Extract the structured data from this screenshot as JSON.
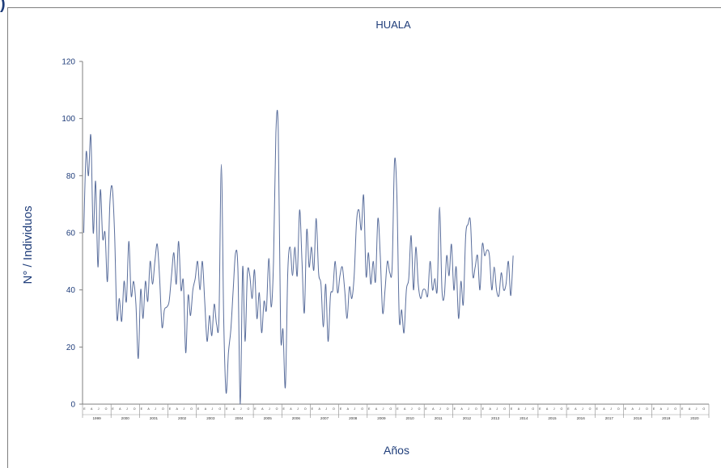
{
  "panel_label": ")",
  "chart_data": {
    "type": "line",
    "title": "HUALA",
    "xlabel": "Años",
    "ylabel": "N° / Individuos",
    "ylim": [
      0,
      120
    ],
    "yticks": [
      0,
      20,
      40,
      60,
      80,
      100,
      120
    ],
    "grid": false,
    "line_color": "#5a6e9c",
    "text_color": "#1f3d7a",
    "years": [
      "1999",
      "2000",
      "2001",
      "2002",
      "2003",
      "2004",
      "2005",
      "2006",
      "2007",
      "2008",
      "2009",
      "2010",
      "2011",
      "2012",
      "2013",
      "2014",
      "2015",
      "2016",
      "2017",
      "2018",
      "2019",
      "2020"
    ],
    "month_ticks": [
      "E",
      "A",
      "J",
      "O"
    ],
    "series": [
      {
        "name": "",
        "x_start": "1999-01",
        "step": "month",
        "values": [
          60,
          88,
          80,
          94,
          60,
          78,
          48,
          75,
          58,
          60,
          43,
          70,
          76,
          60,
          30,
          37,
          29,
          43,
          36,
          57,
          38,
          43,
          35,
          16,
          40,
          30,
          43,
          36,
          50,
          42,
          50,
          56,
          44,
          27,
          33,
          34,
          36,
          45,
          53,
          42,
          57,
          40,
          43,
          18,
          38,
          31,
          40,
          44,
          50,
          40,
          50,
          36,
          22,
          31,
          24,
          35,
          28,
          30,
          84,
          30,
          4,
          18,
          26,
          40,
          53,
          47,
          0,
          48,
          22,
          46,
          45,
          37,
          47,
          30,
          39,
          25,
          36,
          33,
          51,
          34,
          50,
          95,
          96,
          25,
          26,
          6,
          46,
          55,
          45,
          55,
          45,
          68,
          50,
          32,
          61,
          48,
          55,
          47,
          65,
          46,
          42,
          27,
          42,
          22,
          38,
          40,
          50,
          39,
          45,
          48,
          40,
          30,
          41,
          37,
          45,
          64,
          68,
          61,
          73,
          45,
          53,
          42,
          50,
          43,
          65,
          52,
          32,
          40,
          50,
          46,
          48,
          85,
          73,
          30,
          33,
          25,
          40,
          44,
          59,
          40,
          55,
          42,
          37,
          40,
          40,
          38,
          50,
          40,
          44,
          40,
          69,
          40,
          38,
          52,
          45,
          56,
          40,
          48,
          30,
          43,
          35,
          59,
          63,
          64,
          45,
          48,
          52,
          40,
          56,
          52,
          54,
          52,
          40,
          48,
          40,
          38,
          46,
          40,
          42,
          50,
          38,
          52
        ]
      }
    ]
  }
}
